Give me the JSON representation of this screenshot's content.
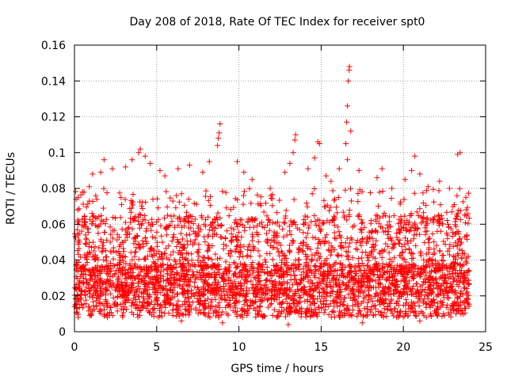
{
  "chart_data": {
    "type": "scatter",
    "title": "Day 208 of 2018, Rate Of TEC Index for receiver spt0",
    "xlabel": "GPS time / hours",
    "ylabel": "ROTI / TECUs",
    "xlim": [
      0,
      25
    ],
    "ylim": [
      0,
      0.16
    ],
    "xticks": [
      "0",
      "5",
      "10",
      "15",
      "20",
      "25"
    ],
    "yticks": [
      "0",
      "0.02",
      "0.04",
      "0.06",
      "0.08",
      "0.1",
      "0.12",
      "0.14",
      "0.16"
    ],
    "grid": true,
    "marker": "+",
    "color": "#ff0000",
    "coverage_hours": [
      0,
      24
    ],
    "typical_range": [
      0.005,
      0.08
    ],
    "series": [
      {
        "name": "ROTI",
        "points": [
          [
            0.0,
            0.014
          ],
          [
            0.05,
            0.015
          ],
          [
            0.1,
            0.074
          ],
          [
            0.2,
            0.068
          ],
          [
            0.3,
            0.05
          ],
          [
            0.5,
            0.078
          ],
          [
            0.9,
            0.081
          ],
          [
            1.1,
            0.088
          ],
          [
            1.6,
            0.089
          ],
          [
            1.8,
            0.096
          ],
          [
            2.3,
            0.091
          ],
          [
            3.1,
            0.092
          ],
          [
            3.5,
            0.096
          ],
          [
            3.9,
            0.1
          ],
          [
            4.0,
            0.102
          ],
          [
            4.3,
            0.098
          ],
          [
            4.6,
            0.094
          ],
          [
            5.2,
            0.09
          ],
          [
            5.5,
            0.087
          ],
          [
            6.3,
            0.091
          ],
          [
            7.0,
            0.093
          ],
          [
            7.8,
            0.089
          ],
          [
            8.2,
            0.095
          ],
          [
            8.7,
            0.104
          ],
          [
            8.75,
            0.108
          ],
          [
            8.8,
            0.111
          ],
          [
            8.85,
            0.116
          ],
          [
            9.9,
            0.095
          ],
          [
            10.3,
            0.089
          ],
          [
            10.8,
            0.085
          ],
          [
            11.9,
            0.08
          ],
          [
            12.8,
            0.089
          ],
          [
            13.1,
            0.094
          ],
          [
            13.3,
            0.1
          ],
          [
            13.4,
            0.107
          ],
          [
            13.45,
            0.11
          ],
          [
            14.2,
            0.091
          ],
          [
            14.6,
            0.097
          ],
          [
            14.8,
            0.106
          ],
          [
            14.9,
            0.105
          ],
          [
            15.3,
            0.087
          ],
          [
            15.6,
            0.084
          ],
          [
            16.1,
            0.091
          ],
          [
            16.5,
            0.105
          ],
          [
            16.55,
            0.117
          ],
          [
            16.6,
            0.126
          ],
          [
            16.65,
            0.14
          ],
          [
            16.7,
            0.146
          ],
          [
            16.72,
            0.148
          ],
          [
            16.8,
            0.112
          ],
          [
            16.6,
            0.096
          ],
          [
            17.3,
            0.09
          ],
          [
            18.4,
            0.086
          ],
          [
            18.7,
            0.091
          ],
          [
            19.3,
            0.08
          ],
          [
            20.1,
            0.085
          ],
          [
            20.5,
            0.09
          ],
          [
            20.7,
            0.098
          ],
          [
            21.0,
            0.088
          ],
          [
            21.5,
            0.081
          ],
          [
            22.2,
            0.084
          ],
          [
            22.8,
            0.08
          ],
          [
            23.3,
            0.099
          ],
          [
            23.45,
            0.1
          ],
          [
            23.8,
            0.075
          ],
          [
            2.0,
            0.008
          ],
          [
            6.5,
            0.006
          ],
          [
            9.0,
            0.005
          ],
          [
            13.0,
            0.004
          ],
          [
            17.5,
            0.005
          ],
          [
            21.0,
            0.006
          ],
          [
            23.9,
            0.018
          ]
        ]
      }
    ]
  }
}
